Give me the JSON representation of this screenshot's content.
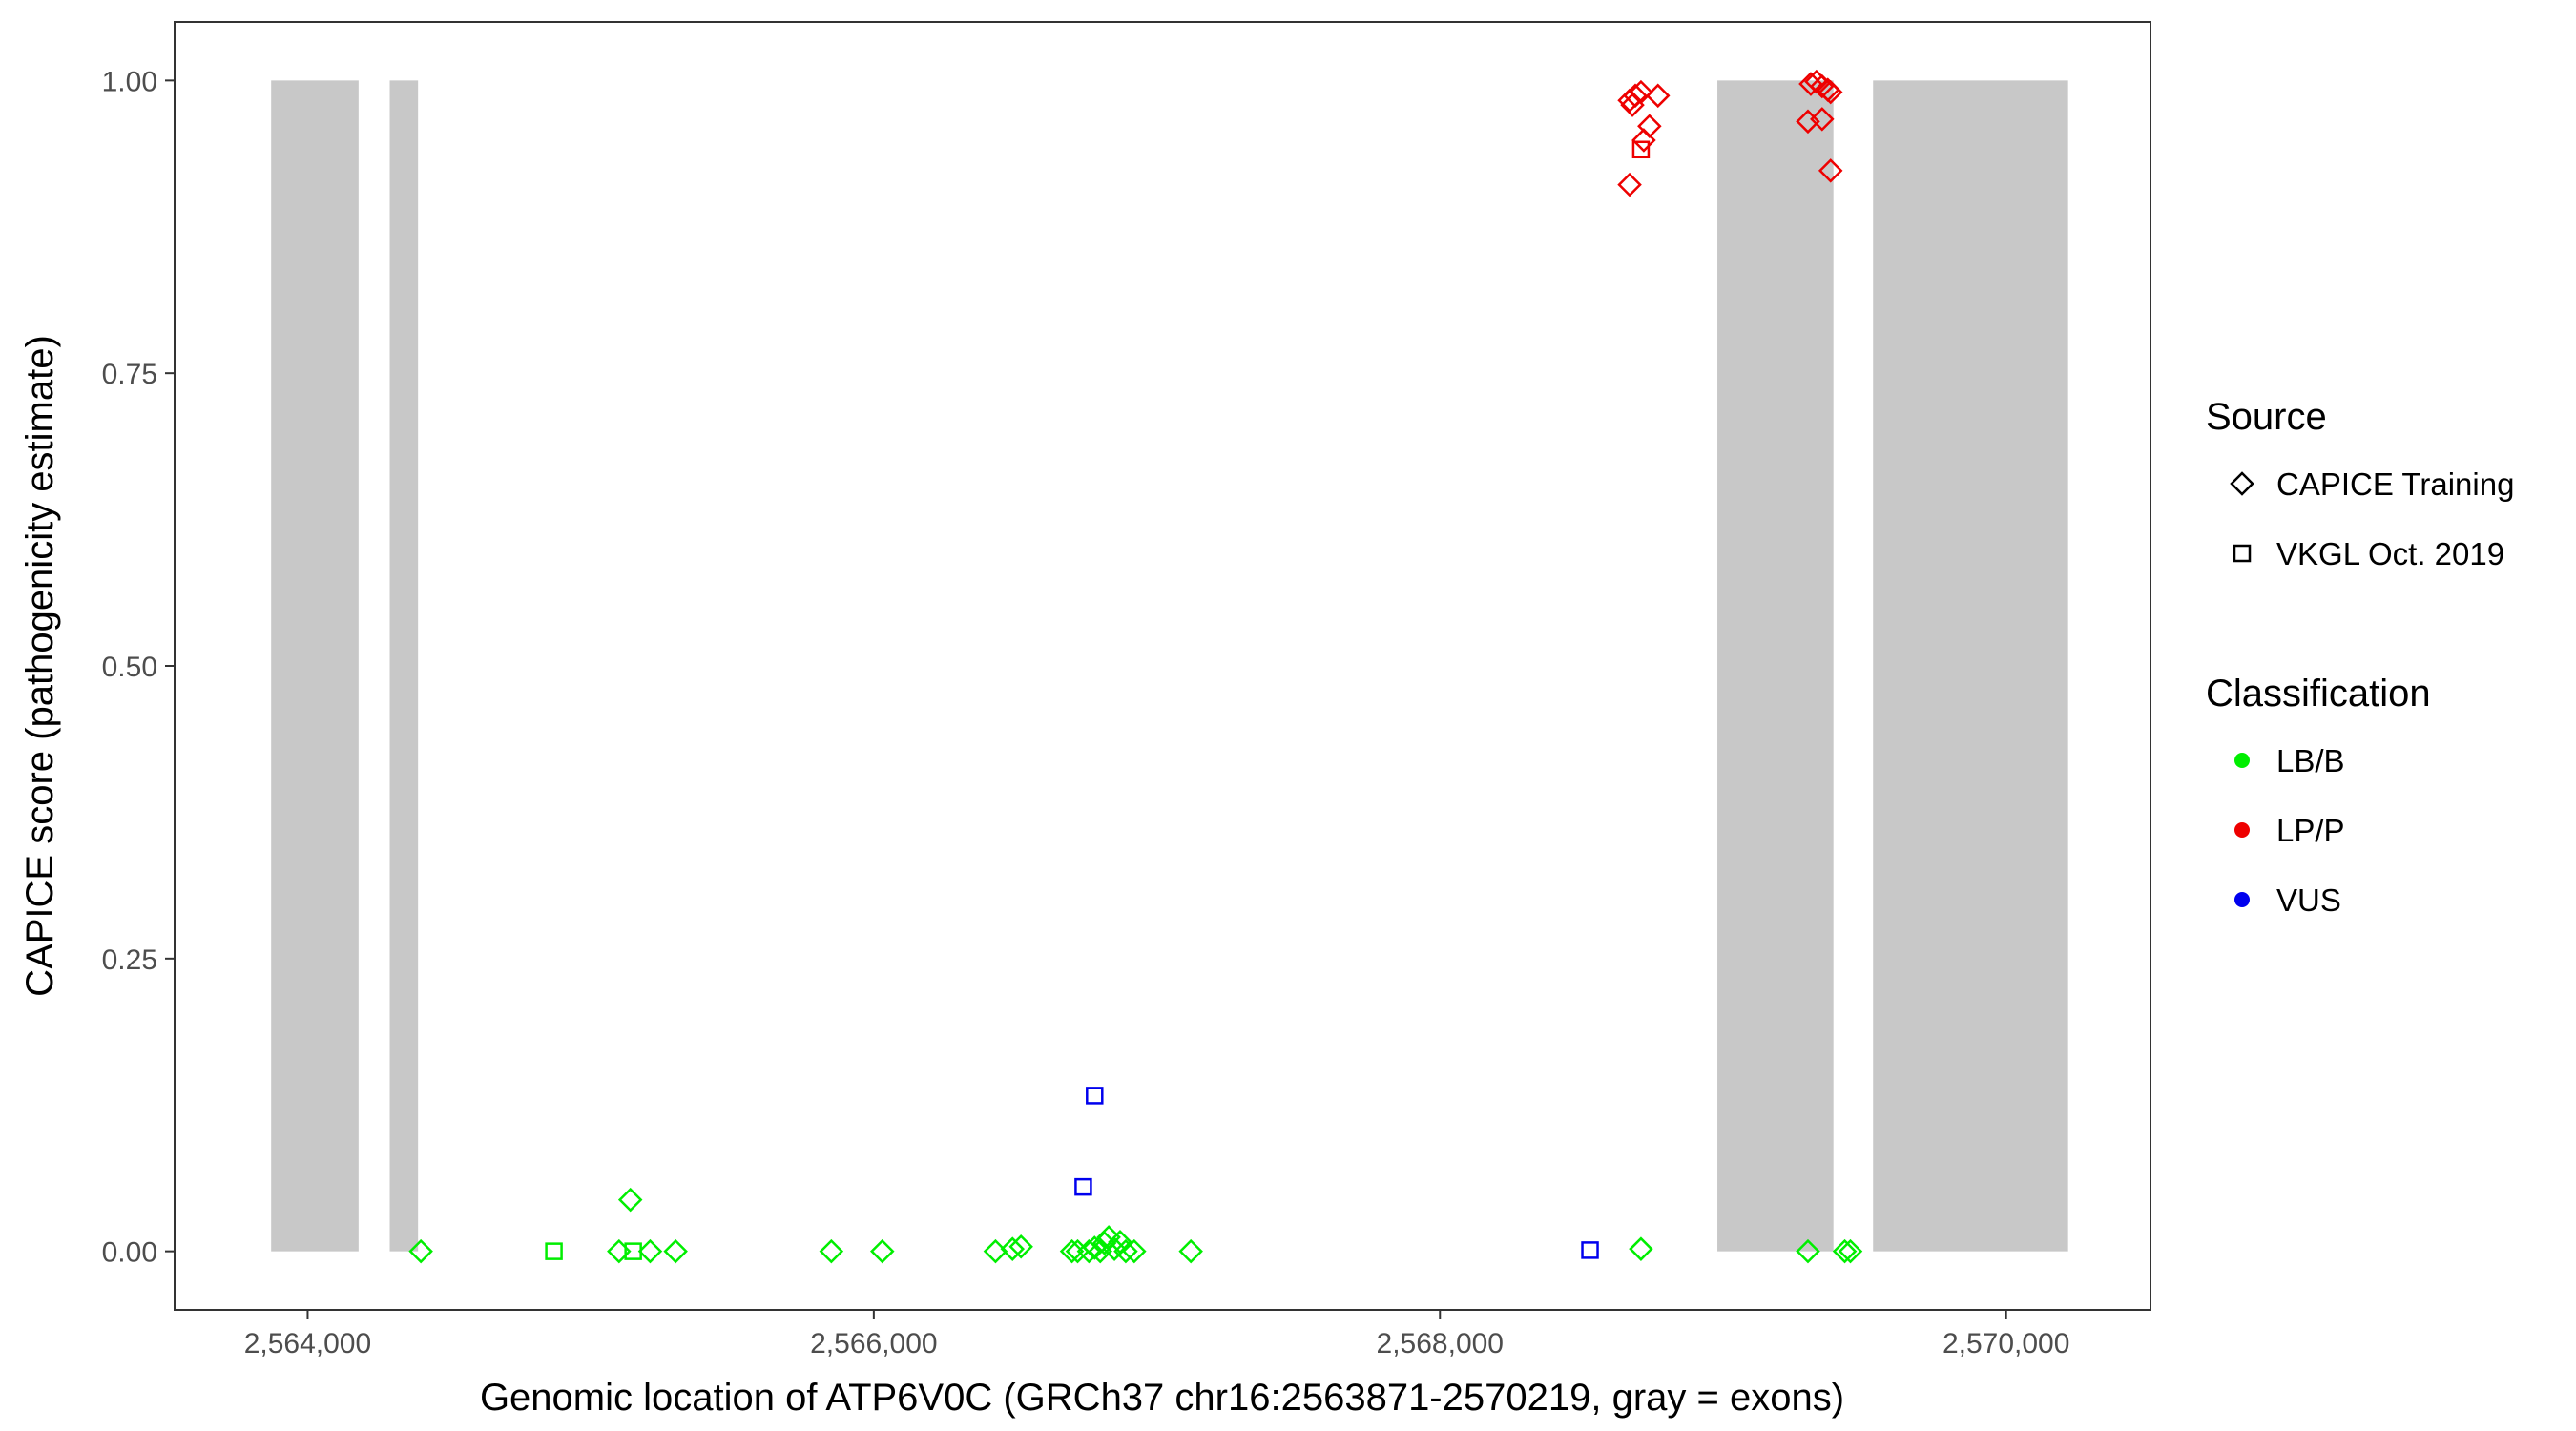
{
  "chart_data": {
    "type": "scatter",
    "title": "",
    "xlabel": "Genomic location of ATP6V0C (GRCh37 chr16:2563871-2570219, gray = exons)",
    "ylabel": "CAPICE score (pathogenicity estimate)",
    "xlim": [
      2563530,
      2570510
    ],
    "ylim": [
      -0.05,
      1.05
    ],
    "x_ticks": [
      2564000,
      2566000,
      2568000,
      2570000
    ],
    "x_tick_labels": [
      "2,564,000",
      "2,566,000",
      "2,568,000",
      "2,570,000"
    ],
    "y_ticks": [
      0,
      0.25,
      0.5,
      0.75,
      1.0
    ],
    "y_tick_labels": [
      "0.00",
      "0.25",
      "0.50",
      "0.75",
      "1.00"
    ],
    "grid": false,
    "exon_color": "#c8c8c8",
    "exons": [
      {
        "start": 2563871,
        "end": 2564180
      },
      {
        "start": 2564290,
        "end": 2564390
      },
      {
        "start": 2568980,
        "end": 2569390
      },
      {
        "start": 2569530,
        "end": 2570219
      }
    ],
    "legend_position": "right",
    "legend": {
      "source_title": "Source",
      "source_items": [
        {
          "label": "CAPICE Training",
          "shape": "diamond"
        },
        {
          "label": "VKGL Oct. 2019",
          "shape": "square"
        }
      ],
      "class_title": "Classification",
      "class_items": [
        {
          "label": "LB/B",
          "color": "#00ee00"
        },
        {
          "label": "LP/P",
          "color": "#ee0000"
        },
        {
          "label": "VUS",
          "color": "#0000ee"
        }
      ]
    },
    "points": [
      {
        "x": 2564400,
        "y": 0.0,
        "shape": "diamond",
        "cls": "LB/B"
      },
      {
        "x": 2564870,
        "y": 0.0,
        "shape": "square",
        "cls": "LB/B"
      },
      {
        "x": 2565100,
        "y": 0.0,
        "shape": "diamond",
        "cls": "LB/B"
      },
      {
        "x": 2565140,
        "y": 0.044,
        "shape": "diamond",
        "cls": "LB/B"
      },
      {
        "x": 2565150,
        "y": 0.0,
        "shape": "square",
        "cls": "LB/B"
      },
      {
        "x": 2565210,
        "y": 0.0,
        "shape": "diamond",
        "cls": "LB/B"
      },
      {
        "x": 2565300,
        "y": 0.0,
        "shape": "diamond",
        "cls": "LB/B"
      },
      {
        "x": 2565850,
        "y": 0.0,
        "shape": "diamond",
        "cls": "LB/B"
      },
      {
        "x": 2566030,
        "y": 0.0,
        "shape": "diamond",
        "cls": "LB/B"
      },
      {
        "x": 2566430,
        "y": 0.0,
        "shape": "diamond",
        "cls": "LB/B"
      },
      {
        "x": 2566490,
        "y": 0.002,
        "shape": "diamond",
        "cls": "LB/B"
      },
      {
        "x": 2566520,
        "y": 0.004,
        "shape": "diamond",
        "cls": "LB/B"
      },
      {
        "x": 2566700,
        "y": 0.0,
        "shape": "diamond",
        "cls": "LB/B"
      },
      {
        "x": 2566720,
        "y": 0.0,
        "shape": "diamond",
        "cls": "LB/B"
      },
      {
        "x": 2566760,
        "y": 0.0,
        "shape": "diamond",
        "cls": "LB/B"
      },
      {
        "x": 2566780,
        "y": 0.003,
        "shape": "diamond",
        "cls": "LB/B"
      },
      {
        "x": 2566800,
        "y": 0.0,
        "shape": "diamond",
        "cls": "LB/B"
      },
      {
        "x": 2566815,
        "y": 0.007,
        "shape": "diamond",
        "cls": "LB/B"
      },
      {
        "x": 2566830,
        "y": 0.012,
        "shape": "diamond",
        "cls": "LB/B"
      },
      {
        "x": 2566850,
        "y": 0.002,
        "shape": "diamond",
        "cls": "LB/B"
      },
      {
        "x": 2566870,
        "y": 0.008,
        "shape": "diamond",
        "cls": "LB/B"
      },
      {
        "x": 2566890,
        "y": 0.0,
        "shape": "diamond",
        "cls": "LB/B"
      },
      {
        "x": 2566920,
        "y": 0.0,
        "shape": "diamond",
        "cls": "LB/B"
      },
      {
        "x": 2567120,
        "y": 0.0,
        "shape": "diamond",
        "cls": "LB/B"
      },
      {
        "x": 2568710,
        "y": 0.002,
        "shape": "diamond",
        "cls": "LB/B"
      },
      {
        "x": 2569300,
        "y": 0.0,
        "shape": "diamond",
        "cls": "LB/B"
      },
      {
        "x": 2569430,
        "y": 0.0,
        "shape": "diamond",
        "cls": "LB/B"
      },
      {
        "x": 2569450,
        "y": 0.0,
        "shape": "diamond",
        "cls": "LB/B"
      },
      {
        "x": 2566740,
        "y": 0.055,
        "shape": "square",
        "cls": "VUS"
      },
      {
        "x": 2566780,
        "y": 0.133,
        "shape": "square",
        "cls": "VUS"
      },
      {
        "x": 2568530,
        "y": 0.001,
        "shape": "square",
        "cls": "VUS"
      },
      {
        "x": 2568670,
        "y": 0.983,
        "shape": "diamond",
        "cls": "LP/P"
      },
      {
        "x": 2568690,
        "y": 0.987,
        "shape": "diamond",
        "cls": "LP/P"
      },
      {
        "x": 2568710,
        "y": 0.99,
        "shape": "diamond",
        "cls": "LP/P"
      },
      {
        "x": 2568680,
        "y": 0.979,
        "shape": "diamond",
        "cls": "LP/P"
      },
      {
        "x": 2568770,
        "y": 0.987,
        "shape": "diamond",
        "cls": "LP/P"
      },
      {
        "x": 2568740,
        "y": 0.961,
        "shape": "diamond",
        "cls": "LP/P"
      },
      {
        "x": 2568720,
        "y": 0.949,
        "shape": "diamond",
        "cls": "LP/P"
      },
      {
        "x": 2568710,
        "y": 0.941,
        "shape": "square",
        "cls": "LP/P"
      },
      {
        "x": 2568670,
        "y": 0.911,
        "shape": "diamond",
        "cls": "LP/P"
      },
      {
        "x": 2569310,
        "y": 0.997,
        "shape": "diamond",
        "cls": "LP/P"
      },
      {
        "x": 2569330,
        "y": 0.999,
        "shape": "diamond",
        "cls": "LP/P"
      },
      {
        "x": 2569350,
        "y": 0.995,
        "shape": "diamond",
        "cls": "LP/P"
      },
      {
        "x": 2569370,
        "y": 0.992,
        "shape": "diamond",
        "cls": "LP/P"
      },
      {
        "x": 2569380,
        "y": 0.99,
        "shape": "diamond",
        "cls": "LP/P"
      },
      {
        "x": 2569300,
        "y": 0.965,
        "shape": "diamond",
        "cls": "LP/P"
      },
      {
        "x": 2569350,
        "y": 0.967,
        "shape": "diamond",
        "cls": "LP/P"
      },
      {
        "x": 2569380,
        "y": 0.923,
        "shape": "diamond",
        "cls": "LP/P"
      }
    ]
  }
}
